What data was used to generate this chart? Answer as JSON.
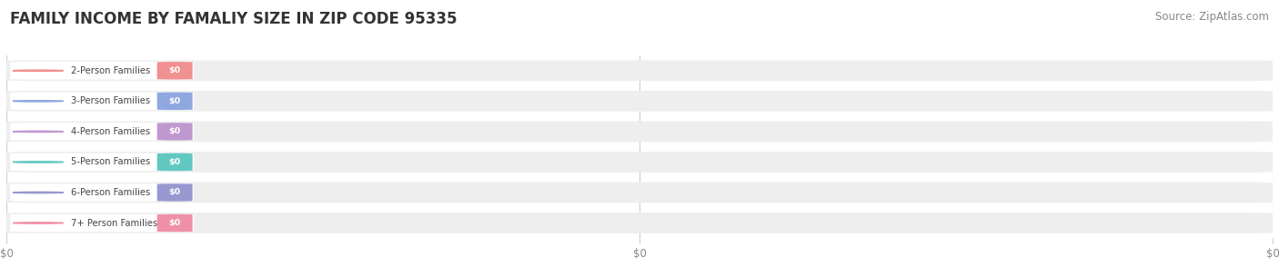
{
  "title": "FAMILY INCOME BY FAMALIY SIZE IN ZIP CODE 95335",
  "source": "Source: ZipAtlas.com",
  "categories": [
    "2-Person Families",
    "3-Person Families",
    "4-Person Families",
    "5-Person Families",
    "6-Person Families",
    "7+ Person Families"
  ],
  "values": [
    0,
    0,
    0,
    0,
    0,
    0
  ],
  "bar_colors": [
    "#f09090",
    "#90a8e0",
    "#c098d0",
    "#60c8c0",
    "#9898d0",
    "#f090a8"
  ],
  "bar_bg_color": "#eeeeee",
  "dot_colors": [
    "#f09090",
    "#90a8e0",
    "#c098d0",
    "#60c8c0",
    "#9898d0",
    "#f090a8"
  ],
  "value_labels": [
    "$0",
    "$0",
    "$0",
    "$0",
    "$0",
    "$0"
  ],
  "background_color": "#ffffff",
  "grid_color": "#cccccc",
  "title_fontsize": 12,
  "source_fontsize": 8.5,
  "bar_height": 0.68,
  "xtick_labels": [
    "$0",
    "$0",
    "$0"
  ]
}
